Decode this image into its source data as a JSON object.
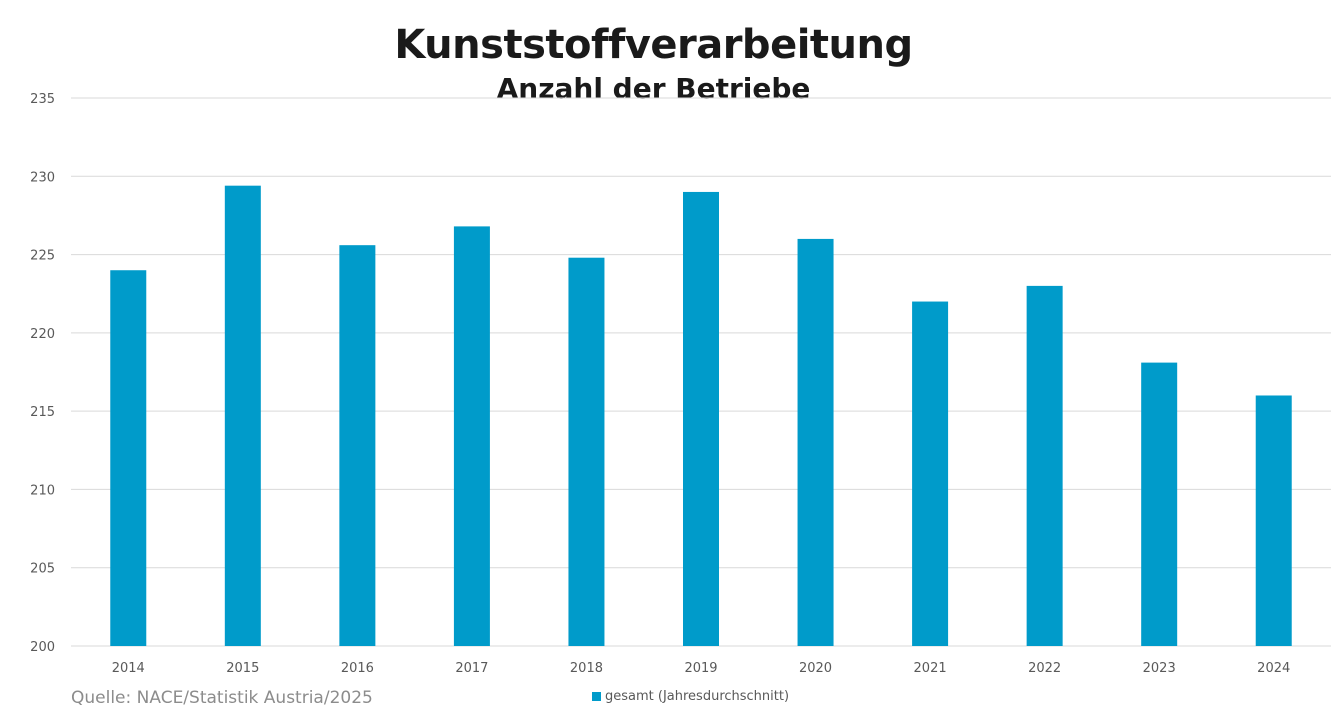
{
  "chart_data": {
    "type": "bar",
    "title": "Kunststoffverarbeitung",
    "subtitle": "Anzahl der Betriebe",
    "xlabel": "",
    "ylabel": "",
    "categories": [
      "2014",
      "2015",
      "2016",
      "2017",
      "2018",
      "2019",
      "2020",
      "2021",
      "2022",
      "2023",
      "2024"
    ],
    "series": [
      {
        "name": "gesamt (Jahresdurchschnitt)",
        "color": "#009BCA",
        "values": [
          224.0,
          229.4,
          225.6,
          226.8,
          224.8,
          229.0,
          226.0,
          222.0,
          223.0,
          218.1,
          216.0
        ]
      }
    ],
    "ylim": [
      200,
      235
    ],
    "yticks": [
      200,
      205,
      210,
      215,
      220,
      225,
      230,
      235
    ],
    "grid": true,
    "legend_position": "bottom-center",
    "source": "Quelle: NACE/Statistik Austria/2025"
  }
}
